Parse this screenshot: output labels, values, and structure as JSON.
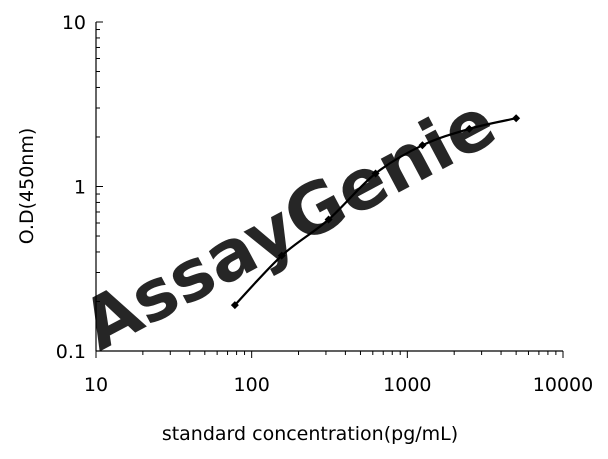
{
  "chart_data": {
    "type": "line",
    "xlabel": "standard concentration(pg/mL)",
    "ylabel": "O.D(450nm)",
    "x_scale": "log",
    "y_scale": "log",
    "xlim": [
      10,
      10000
    ],
    "ylim": [
      0.1,
      10
    ],
    "x_ticks": [
      "10",
      "100",
      "1000",
      "10000"
    ],
    "y_ticks": [
      "10",
      "1",
      "0.1"
    ],
    "grid": false,
    "series": [
      {
        "x": [
          78,
          156,
          312,
          625,
          1250,
          2500,
          5000
        ],
        "y": [
          0.19,
          0.38,
          0.63,
          1.2,
          1.78,
          2.24,
          2.6
        ],
        "color": "#000000",
        "marker": "diamond"
      }
    ],
    "watermark": "AssayGenie",
    "watermark_color": "#c7dff0"
  }
}
